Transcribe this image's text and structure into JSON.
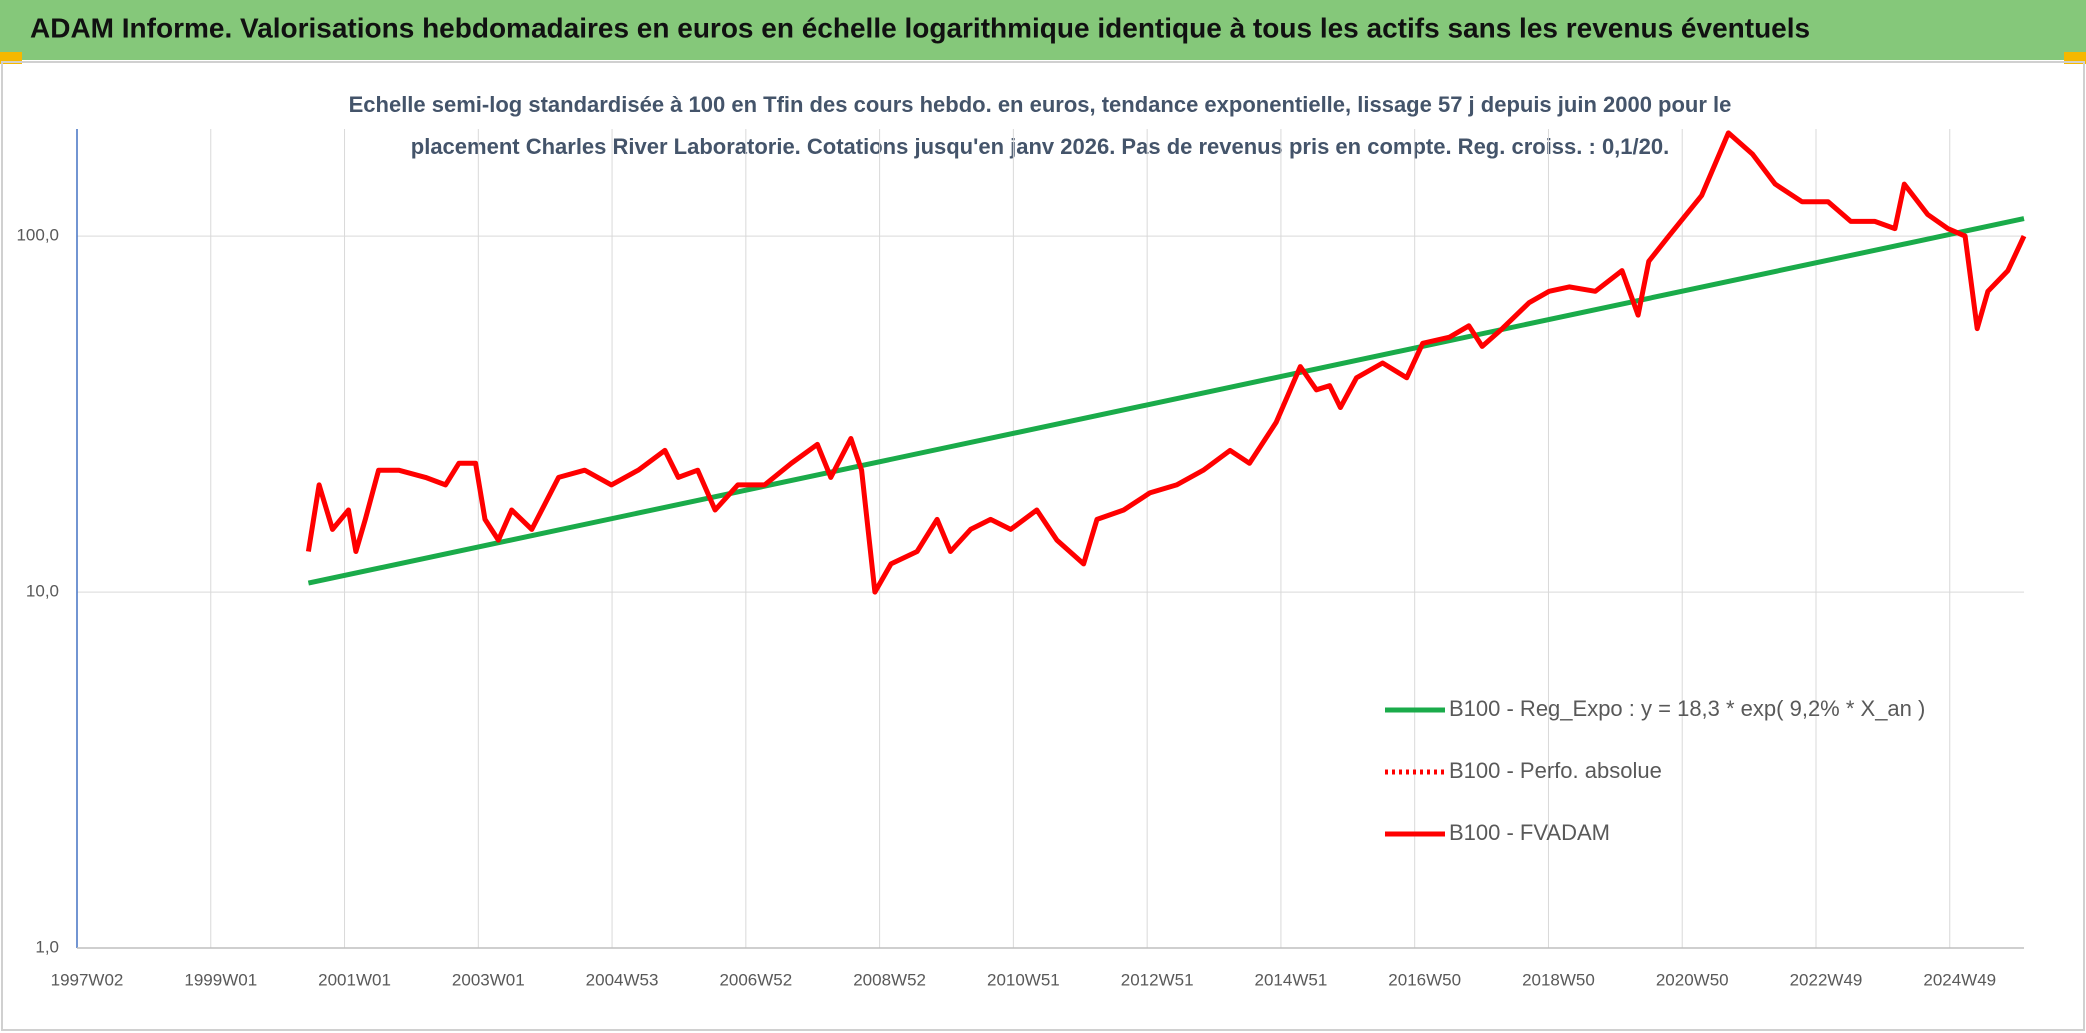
{
  "chart_data": {
    "type": "line",
    "title": "ADAM Informe. Valorisations hebdomadaires en euros en échelle logarithmique identique à tous les actifs sans les revenus éventuels",
    "subtitle": [
      "Echelle semi-log standardisée à 100 en Tfin des cours hebdo. en euros, tendance exponentielle, lissage 57 j depuis juin 2000 pour le",
      "placement Charles River Laboratorie. Cotations jusqu'en janv 2026. Pas de revenus pris en compte. Reg. croiss. : 0,1/20."
    ],
    "log_y": true,
    "grid": true,
    "legend": "lower right",
    "xlim": [
      1997,
      2026.11
    ],
    "xticks": [
      {
        "value": 1997,
        "label": "1997W02"
      },
      {
        "value": 1999,
        "label": "1999W01"
      },
      {
        "value": 2001,
        "label": "2001W01"
      },
      {
        "value": 2003,
        "label": "2003W01"
      },
      {
        "value": 2005,
        "label": "2004W53"
      },
      {
        "value": 2007,
        "label": "2006W52"
      },
      {
        "value": 2009,
        "label": "2008W52"
      },
      {
        "value": 2011,
        "label": "2010W51"
      },
      {
        "value": 2013,
        "label": "2012W51"
      },
      {
        "value": 2015,
        "label": "2014W51"
      },
      {
        "value": 2017,
        "label": "2016W50"
      },
      {
        "value": 2019,
        "label": "2018W50"
      },
      {
        "value": 2021,
        "label": "2020W50"
      },
      {
        "value": 2023,
        "label": "2022W49"
      },
      {
        "value": 2025,
        "label": "2024W49"
      }
    ],
    "ylim": [
      1,
      200
    ],
    "yticks": [
      {
        "value": 1,
        "label": "1,0"
      },
      {
        "value": 10,
        "label": "10,0"
      },
      {
        "value": 100,
        "label": "100,0"
      }
    ],
    "series": [
      {
        "name": "B100 - Reg_Expo : y = 18,3 * exp( 9,2% *  X_an )",
        "color": "#1aab4a",
        "style": "solid",
        "x": [
          2000.46,
          2026.11
        ],
        "values": [
          10.6,
          112
        ]
      },
      {
        "name": "B100 - Perfo. absolue",
        "color": "#ff0000",
        "style": "dotted",
        "x": [],
        "values": []
      },
      {
        "name": "B100 - FVADAM",
        "color": "#ff0000",
        "style": "solid",
        "x": [
          2000.46,
          2000.62,
          2000.82,
          2001.06,
          2001.17,
          2001.31,
          2001.51,
          2001.81,
          2002.21,
          2002.51,
          2002.71,
          2002.96,
          2003.1,
          2003.3,
          2003.5,
          2003.8,
          2004.2,
          2004.59,
          2004.99,
          2005.39,
          2005.79,
          2005.99,
          2006.28,
          2006.54,
          2006.88,
          2007.28,
          2007.68,
          2008.07,
          2008.27,
          2008.57,
          2008.73,
          2008.93,
          2009.17,
          2009.56,
          2009.86,
          2010.06,
          2010.36,
          2010.66,
          2010.96,
          2011.35,
          2011.65,
          2012.05,
          2012.25,
          2012.65,
          2013.04,
          2013.44,
          2013.84,
          2014.24,
          2014.53,
          2014.93,
          2015.29,
          2015.53,
          2015.73,
          2015.89,
          2016.13,
          2016.52,
          2016.88,
          2017.12,
          2017.52,
          2017.81,
          2018.01,
          2018.31,
          2018.71,
          2019.01,
          2019.31,
          2019.7,
          2020.1,
          2020.34,
          2020.5,
          2020.8,
          2021.29,
          2021.69,
          2022.05,
          2022.39,
          2022.79,
          2023.18,
          2023.52,
          2023.88,
          2024.18,
          2024.32,
          2024.67,
          2024.97,
          2025.23,
          2025.41,
          2025.57,
          2025.87,
          2026.11
        ],
        "values": [
          13,
          20,
          15,
          17,
          13,
          16,
          22,
          22,
          21,
          20,
          23,
          23,
          16,
          14,
          17,
          15,
          21,
          22,
          20,
          22,
          25,
          21,
          22,
          17,
          20,
          20,
          23,
          26,
          21,
          27,
          22,
          10,
          12,
          13,
          16,
          13,
          15,
          16,
          15,
          17,
          14,
          12,
          16,
          17,
          19,
          20,
          22,
          25,
          23,
          30,
          43,
          37,
          38,
          33,
          40,
          44,
          40,
          50,
          52,
          56,
          49,
          55,
          65,
          70,
          72,
          70,
          80,
          60,
          85,
          100,
          130,
          195,
          170,
          140,
          125,
          125,
          110,
          110,
          105,
          140,
          115,
          105,
          100,
          55,
          70,
          80,
          100
        ]
      }
    ]
  }
}
